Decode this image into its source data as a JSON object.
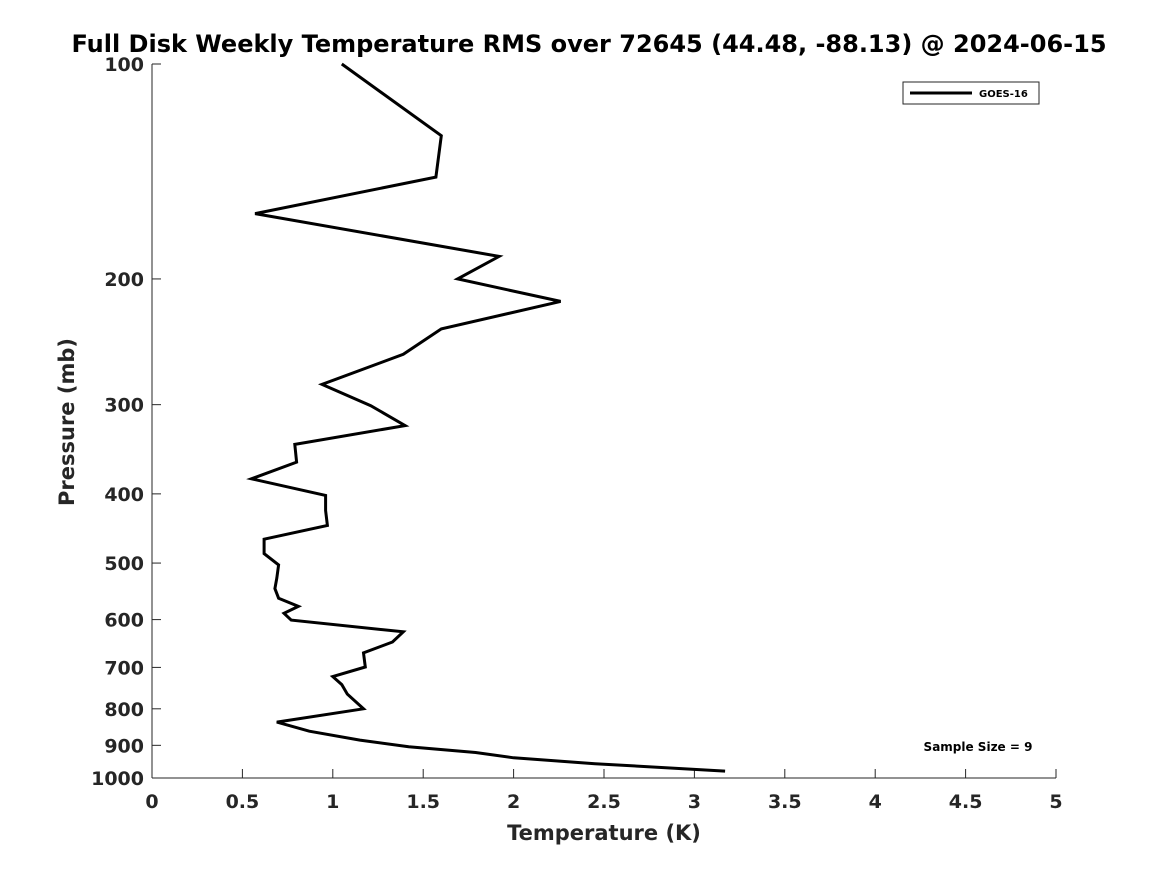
{
  "chart_data": {
    "type": "line",
    "title": "Full Disk Weekly Temperature RMS over 72645 (44.48, -88.13) @ 2024-06-15",
    "xlabel": "Temperature (K)",
    "ylabel": "Pressure (mb)",
    "xlim": [
      0,
      5
    ],
    "ylim": [
      100,
      1000
    ],
    "y_scale": "log",
    "y_reversed": true,
    "x_ticks": [
      "0",
      "0.5",
      "1",
      "1.5",
      "2",
      "2.5",
      "3",
      "3.5",
      "4",
      "4.5",
      "5"
    ],
    "y_ticks": [
      "100",
      "200",
      "300",
      "400",
      "500",
      "600",
      "700",
      "800",
      "900",
      "1000"
    ],
    "grid": false,
    "legend_position": "top-right",
    "series": [
      {
        "name": "GOES-16",
        "color": "#000000",
        "points": [
          [
            1.05,
            100
          ],
          [
            1.6,
            126
          ],
          [
            1.57,
            144
          ],
          [
            0.57,
            162
          ],
          [
            1.92,
            186
          ],
          [
            1.69,
            200
          ],
          [
            2.26,
            215
          ],
          [
            1.6,
            235
          ],
          [
            1.39,
            255
          ],
          [
            0.94,
            281
          ],
          [
            1.21,
            301
          ],
          [
            1.4,
            321
          ],
          [
            0.79,
            341
          ],
          [
            0.8,
            361
          ],
          [
            0.55,
            381
          ],
          [
            0.96,
            402
          ],
          [
            0.96,
            422
          ],
          [
            0.97,
            443
          ],
          [
            0.62,
            463
          ],
          [
            0.62,
            485
          ],
          [
            0.7,
            503
          ],
          [
            0.69,
            525
          ],
          [
            0.68,
            543
          ],
          [
            0.7,
            560
          ],
          [
            0.81,
            575
          ],
          [
            0.73,
            588
          ],
          [
            0.77,
            601
          ],
          [
            1.39,
            624
          ],
          [
            1.33,
            645
          ],
          [
            1.17,
            668
          ],
          [
            1.18,
            699
          ],
          [
            1.0,
            721
          ],
          [
            1.05,
            740
          ],
          [
            1.08,
            763
          ],
          [
            1.17,
            800
          ],
          [
            0.69,
            835
          ],
          [
            0.87,
            860
          ],
          [
            1.15,
            885
          ],
          [
            1.42,
            904
          ],
          [
            1.79,
            921
          ],
          [
            2.0,
            937
          ],
          [
            2.45,
            955
          ],
          [
            3.17,
            978
          ]
        ]
      }
    ],
    "annotation": "Sample Size = 9"
  }
}
